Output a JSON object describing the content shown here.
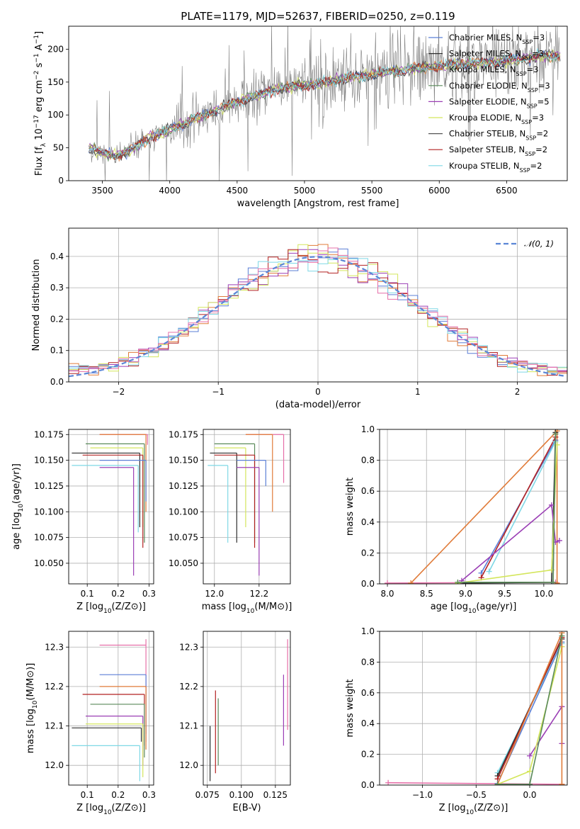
{
  "title": "PLATE=1179, MJD=52637, FIBERID=0250, z=0.119",
  "model_colors": [
    "#5b7fd6",
    "#2f2f2f",
    "#e07b39",
    "#5a8a5a",
    "#9b3fb5",
    "#d4e65c",
    "#555555",
    "#b22222",
    "#7fd8e6"
  ],
  "chart_data": [
    {
      "id": "spectrum",
      "type": "line",
      "xlabel": "wavelength [Angstrom, rest frame]",
      "ylabel": "Flux [f_λ 10^-17 erg cm^-2 s^-1 A^-1]",
      "xlim": [
        3250,
        6950
      ],
      "ylim": [
        0,
        235
      ],
      "xticks": [
        3500,
        4000,
        4500,
        5000,
        5500,
        6000,
        6500
      ],
      "yticks": [
        0,
        50,
        100,
        150,
        200
      ],
      "grid": false,
      "legend_position": "top-right",
      "data_color": "#808080",
      "trend": {
        "x": [
          3400,
          3500,
          3600,
          3700,
          3800,
          4000,
          4200,
          4500,
          4800,
          5000,
          5300,
          5600,
          6000,
          6400,
          6750
        ],
        "y": [
          50,
          42,
          38,
          45,
          60,
          78,
          95,
          120,
          140,
          145,
          155,
          165,
          175,
          180,
          190
        ]
      },
      "legend": [
        {
          "label": "Chabrier MILES, N",
          "sub": "SSP",
          "suffix": "=3",
          "color": "#5b7fd6"
        },
        {
          "label": "Salpeter MILES, N",
          "sub": "SSP",
          "suffix": "=3",
          "color": "#2f2f2f"
        },
        {
          "label": "Kroupa MILES, N",
          "sub": "SSP",
          "suffix": "=3",
          "color": "#e07b39"
        },
        {
          "label": "Chabrier ELODIE, N",
          "sub": "SSP",
          "suffix": "=3",
          "color": "#5a8a5a"
        },
        {
          "label": "Salpeter ELODIE, N",
          "sub": "SSP",
          "suffix": "=5",
          "color": "#9b3fb5"
        },
        {
          "label": "Kroupa ELODIE, N",
          "sub": "SSP",
          "suffix": "=3",
          "color": "#d4e65c"
        },
        {
          "label": "Chabrier STELIB, N",
          "sub": "SSP",
          "suffix": "=2",
          "color": "#555555"
        },
        {
          "label": "Salpeter STELIB, N",
          "sub": "SSP",
          "suffix": "=2",
          "color": "#b22222"
        },
        {
          "label": "Kroupa STELIB, N",
          "sub": "SSP",
          "suffix": "=2",
          "color": "#7fd8e6"
        }
      ]
    },
    {
      "id": "residuals",
      "type": "line",
      "xlabel": "(data-model)/error",
      "ylabel": "Normed distribution",
      "xlim": [
        -2.5,
        2.5
      ],
      "ylim": [
        0,
        0.49
      ],
      "xticks": [
        -2,
        -1,
        0,
        1,
        2
      ],
      "yticks": [
        0.0,
        0.1,
        0.2,
        0.3,
        0.4
      ],
      "grid": true,
      "legend_position": "top-right",
      "legend_label": "𝒩(0, 1)",
      "gauss_color": "#5b86d6",
      "hist_colors": [
        "#5b7fd6",
        "#e07b39",
        "#9b3fb5",
        "#d4e65c",
        "#b22222",
        "#7fd8e6",
        "#e66fa8"
      ],
      "bin_width": 0.1
    },
    {
      "id": "age-vs-Z",
      "type": "scatter",
      "xlabel": "Z [log10(Z/Z⊙)]",
      "ylabel": "age [log10(age/yr)]",
      "xlim": [
        0.04,
        0.315
      ],
      "ylim": [
        10.03,
        10.18
      ],
      "xticks": [
        0.1,
        0.2,
        0.3
      ],
      "yticks": [
        10.05,
        10.075,
        10.1,
        10.125,
        10.15,
        10.175
      ],
      "grid": true,
      "points": [
        {
          "x": 0.295,
          "y": 10.175,
          "xmin": 0.14,
          "ymin": 10.165,
          "color": "#e66fa8"
        },
        {
          "x": 0.29,
          "y": 10.175,
          "xmin": 0.14,
          "ymin": 10.1,
          "color": "#e07b39"
        },
        {
          "x": 0.285,
          "y": 10.166,
          "xmin": 0.095,
          "ymin": 10.07,
          "color": "#5a8a5a"
        },
        {
          "x": 0.28,
          "y": 10.162,
          "xmin": 0.11,
          "ymin": 10.085,
          "color": "#d4e65c"
        },
        {
          "x": 0.27,
          "y": 10.157,
          "xmin": 0.05,
          "ymin": 10.085,
          "color": "#2f2f2f"
        },
        {
          "x": 0.28,
          "y": 10.155,
          "xmin": 0.085,
          "ymin": 10.065,
          "color": "#b22222"
        },
        {
          "x": 0.29,
          "y": 10.15,
          "xmin": 0.14,
          "ymin": 10.11,
          "color": "#5b7fd6"
        },
        {
          "x": 0.265,
          "y": 10.145,
          "xmin": 0.05,
          "ymin": 10.08,
          "color": "#7fd8e6"
        },
        {
          "x": 0.25,
          "y": 10.143,
          "xmin": 0.14,
          "ymin": 10.038,
          "color": "#9b3fb5"
        }
      ]
    },
    {
      "id": "age-vs-mass",
      "type": "scatter",
      "xlabel": "mass [log10(M/M⊙)]",
      "ylabel": "",
      "xlim": [
        11.95,
        12.34
      ],
      "ylim": [
        10.03,
        10.18
      ],
      "xticks": [
        12.0,
        12.2
      ],
      "yticks": [
        10.05,
        10.075,
        10.1,
        10.125,
        10.15,
        10.175
      ],
      "grid": true,
      "points": [
        {
          "x": 12.31,
          "y": 10.175,
          "xmin": 12.14,
          "ymin": 10.128,
          "color": "#e66fa8"
        },
        {
          "x": 12.26,
          "y": 10.175,
          "xmin": 12.14,
          "ymin": 10.1,
          "color": "#e07b39"
        },
        {
          "x": 12.18,
          "y": 10.166,
          "xmin": 12.0,
          "ymin": 10.07,
          "color": "#5a8a5a"
        },
        {
          "x": 12.14,
          "y": 10.162,
          "xmin": 12.0,
          "ymin": 10.085,
          "color": "#d4e65c"
        },
        {
          "x": 12.1,
          "y": 10.157,
          "xmin": 11.98,
          "ymin": 10.07,
          "color": "#2f2f2f"
        },
        {
          "x": 12.18,
          "y": 10.155,
          "xmin": 12.0,
          "ymin": 10.065,
          "color": "#b22222"
        },
        {
          "x": 12.23,
          "y": 10.15,
          "xmin": 12.1,
          "ymin": 10.125,
          "color": "#5b7fd6"
        },
        {
          "x": 12.06,
          "y": 10.145,
          "xmin": 11.97,
          "ymin": 10.07,
          "color": "#7fd8e6"
        },
        {
          "x": 12.2,
          "y": 10.143,
          "xmin": 12.1,
          "ymin": 10.038,
          "color": "#9b3fb5"
        }
      ]
    },
    {
      "id": "massweight-vs-age",
      "type": "line",
      "xlabel": "age [log10(age/yr)]",
      "ylabel": "mass weight",
      "xlim": [
        7.9,
        10.3
      ],
      "ylim": [
        0,
        1
      ],
      "xticks": [
        8.0,
        8.5,
        9.0,
        9.5,
        10.0
      ],
      "yticks": [
        0.0,
        0.2,
        0.4,
        0.6,
        0.8,
        1.0
      ],
      "grid": true,
      "series": [
        {
          "color": "#e66fa8",
          "x": [
            8.0,
            10.15
          ],
          "y": [
            0.005,
            0.01
          ]
        },
        {
          "color": "#e07b39",
          "x": [
            8.3,
            10.17,
            10.17
          ],
          "y": [
            0.005,
            0.99,
            0.005
          ]
        },
        {
          "color": "#5b7fd6",
          "x": [
            9.2,
            10.15
          ],
          "y": [
            0.07,
            0.93
          ]
        },
        {
          "color": "#2f2f2f",
          "x": [
            8.9,
            10.1,
            10.15
          ],
          "y": [
            0.005,
            0.01,
            0.98
          ]
        },
        {
          "color": "#b22222",
          "x": [
            9.2,
            10.15
          ],
          "y": [
            0.04,
            0.95
          ]
        },
        {
          "color": "#7fd8e6",
          "x": [
            9.3,
            10.15
          ],
          "y": [
            0.08,
            0.92
          ]
        },
        {
          "color": "#9b3fb5",
          "x": [
            8.95,
            10.1,
            10.15,
            10.2
          ],
          "y": [
            0.02,
            0.51,
            0.27,
            0.28
          ]
        },
        {
          "color": "#d4e65c",
          "x": [
            8.9,
            10.1,
            10.17
          ],
          "y": [
            0.005,
            0.09,
            0.9
          ]
        },
        {
          "color": "#5a8a5a",
          "x": [
            8.9,
            10.12,
            10.15
          ],
          "y": [
            0.01,
            0.01,
            0.97
          ]
        }
      ]
    },
    {
      "id": "mass-vs-Z",
      "type": "scatter",
      "xlabel": "Z [log10(Z/Z⊙)]",
      "ylabel": "mass [log10(M/M⊙)]",
      "xlim": [
        0.04,
        0.315
      ],
      "ylim": [
        11.95,
        12.34
      ],
      "xticks": [
        0.1,
        0.2,
        0.3
      ],
      "yticks": [
        12.0,
        12.1,
        12.2,
        12.3
      ],
      "grid": true,
      "points": [
        {
          "x": 0.29,
          "y": 12.305,
          "xmin": 0.14,
          "ymin": 12.06,
          "ymax": 12.32,
          "color": "#e66fa8"
        },
        {
          "x": 0.29,
          "y": 12.23,
          "xmin": 0.14,
          "ymin": 12.08,
          "color": "#5b7fd6"
        },
        {
          "x": 0.29,
          "y": 12.2,
          "xmin": 0.14,
          "ymin": 12.04,
          "color": "#e07b39"
        },
        {
          "x": 0.285,
          "y": 12.18,
          "xmin": 0.085,
          "ymin": 12.05,
          "color": "#b22222"
        },
        {
          "x": 0.285,
          "y": 12.155,
          "xmin": 0.11,
          "ymin": 12.02,
          "color": "#5a8a5a"
        },
        {
          "x": 0.28,
          "y": 12.125,
          "xmin": 0.095,
          "ymin": 12.0,
          "color": "#9b3fb5"
        },
        {
          "x": 0.28,
          "y": 12.105,
          "xmin": 0.095,
          "ymin": 11.97,
          "color": "#d4e65c"
        },
        {
          "x": 0.275,
          "y": 12.095,
          "xmin": 0.05,
          "ymin": 12.06,
          "color": "#2f2f2f"
        },
        {
          "x": 0.27,
          "y": 12.05,
          "xmin": 0.05,
          "ymin": 11.96,
          "color": "#7fd8e6"
        }
      ]
    },
    {
      "id": "mass-vs-ebv",
      "type": "scatter",
      "xlabel": "E(B-V)",
      "ylabel": "",
      "xlim": [
        0.072,
        0.136
      ],
      "ylim": [
        11.95,
        12.34
      ],
      "xticks": [
        0.075,
        0.1,
        0.125
      ],
      "yticks": [
        12.0,
        12.1,
        12.2,
        12.3
      ],
      "grid": true,
      "points": [
        {
          "x": 0.077,
          "ymin": 11.97,
          "ymax": 12.1,
          "color": "#7fd8e6"
        },
        {
          "x": 0.077,
          "ymin": 11.96,
          "ymax": 12.1,
          "color": "#2f2f2f"
        },
        {
          "x": 0.081,
          "ymin": 11.98,
          "ymax": 12.19,
          "color": "#b22222"
        },
        {
          "x": 0.083,
          "ymin": 12.0,
          "ymax": 12.17,
          "color": "#5a8a5a"
        },
        {
          "x": 0.131,
          "ymin": 12.05,
          "ymax": 12.23,
          "color": "#9b3fb5"
        },
        {
          "x": 0.134,
          "ymin": 12.09,
          "ymax": 12.32,
          "color": "#e66fa8"
        }
      ]
    },
    {
      "id": "massweight-vs-Z",
      "type": "line",
      "xlabel": "Z [log10(Z/Z⊙)]",
      "ylabel": "mass weight",
      "xlim": [
        -1.4,
        0.35
      ],
      "ylim": [
        0,
        1
      ],
      "xticks": [
        -1.0,
        -0.5,
        0.0
      ],
      "yticks": [
        0.0,
        0.2,
        0.4,
        0.6,
        0.8,
        1.0
      ],
      "grid": true,
      "series": [
        {
          "color": "#e66fa8",
          "x": [
            -1.32,
            0.3
          ],
          "y": [
            0.015,
            0.005
          ]
        },
        {
          "color": "#7fd8e6",
          "x": [
            -0.3,
            0.3
          ],
          "y": [
            0.08,
            0.92
          ]
        },
        {
          "color": "#2f2f2f",
          "x": [
            -0.3,
            0.3
          ],
          "y": [
            0.06,
            0.95
          ]
        },
        {
          "color": "#b22222",
          "x": [
            -0.3,
            0.3
          ],
          "y": [
            0.04,
            0.96
          ]
        },
        {
          "color": "#5b7fd6",
          "x": [
            -0.3,
            0.3
          ],
          "y": [
            0.01,
            0.93
          ]
        },
        {
          "color": "#9b3fb5",
          "x": [
            0.0,
            0.3,
            0.3
          ],
          "y": [
            0.19,
            0.51,
            0.27
          ]
        },
        {
          "color": "#d4e65c",
          "x": [
            -0.3,
            0.0,
            0.3
          ],
          "y": [
            0.005,
            0.09,
            0.9
          ]
        },
        {
          "color": "#e07b39",
          "x": [
            -0.3,
            0.3,
            0.3
          ],
          "y": [
            0.005,
            0.99,
            0.005
          ]
        },
        {
          "color": "#5a8a5a",
          "x": [
            -0.3,
            0.0,
            0.3
          ],
          "y": [
            0.005,
            0.005,
            0.97
          ]
        }
      ]
    }
  ]
}
